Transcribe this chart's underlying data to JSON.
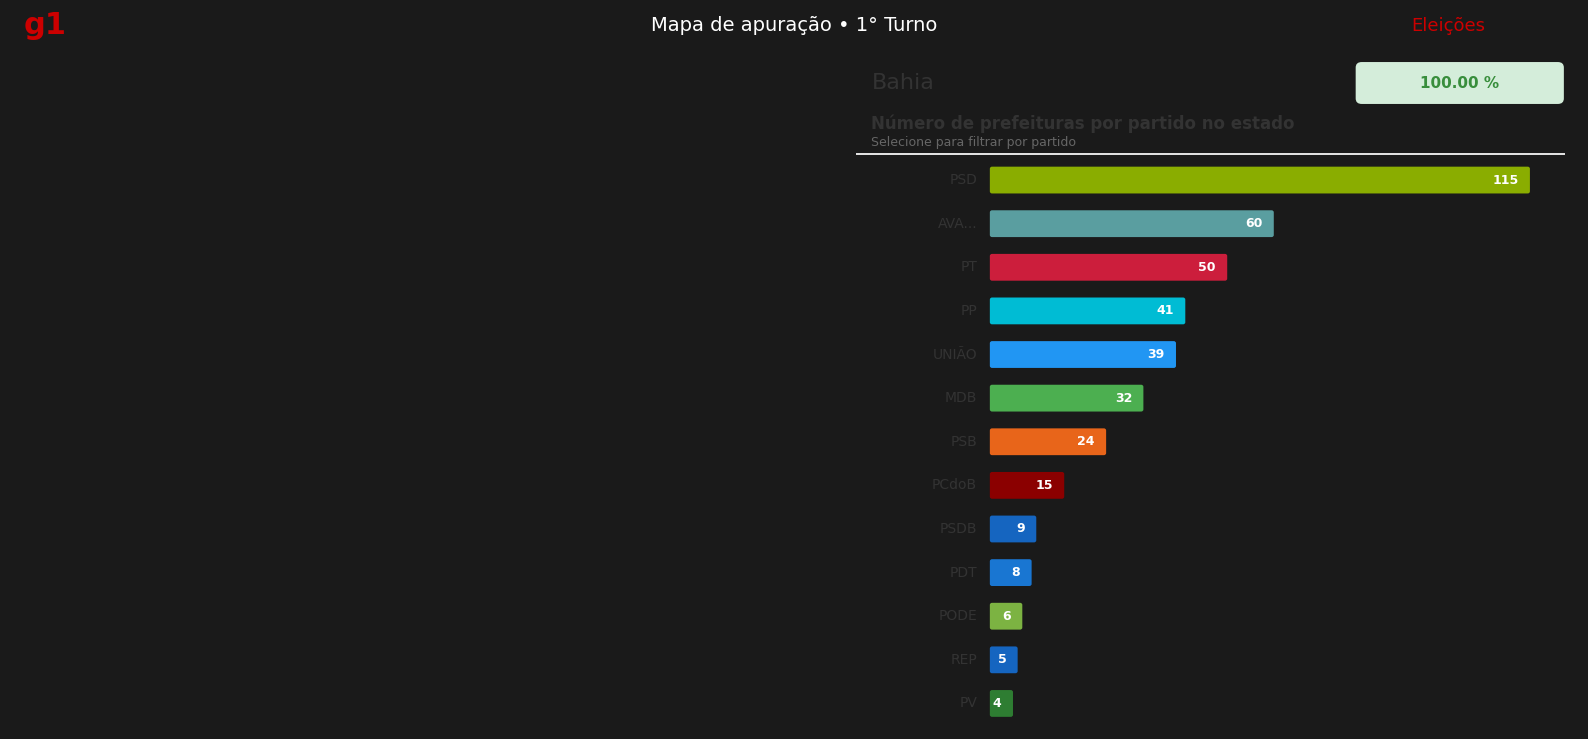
{
  "title": "Número de prefeituras por partido no estado",
  "subtitle": "Selecione para filtrar por partido",
  "state_label": "Bahia",
  "state_pct": "100.00 %",
  "parties": [
    "PSD",
    "AVA...",
    "PT",
    "PP",
    "UNIÃO",
    "MDB",
    "PSB",
    "PCdoB",
    "PSDB",
    "PDT",
    "PODE",
    "REP",
    "PV"
  ],
  "values": [
    115,
    60,
    50,
    41,
    39,
    32,
    24,
    15,
    9,
    8,
    6,
    5,
    4
  ],
  "colors": [
    "#8aad00",
    "#5a9ea0",
    "#cc1e3c",
    "#00bcd4",
    "#2196f3",
    "#4caf50",
    "#e8651a",
    "#8b0000",
    "#1565c0",
    "#1976d2",
    "#7cb342",
    "#1565c0",
    "#2e7d32"
  ],
  "max_value": 115,
  "panel_bg": "#ffffff",
  "label_color": "#333333",
  "title_color": "#333333",
  "subtitle_color": "#666666",
  "state_badge_bg": "#d4edda",
  "state_badge_text": "#388e3c",
  "top_bar_bg": "#1a1a1a",
  "map_bg": "#1a1a1a",
  "g1_color": "#cc0000",
  "elections_color": "#cc0000",
  "header_text": "Mapa de apuração • 1° Turno",
  "elections_label": "Eleições"
}
